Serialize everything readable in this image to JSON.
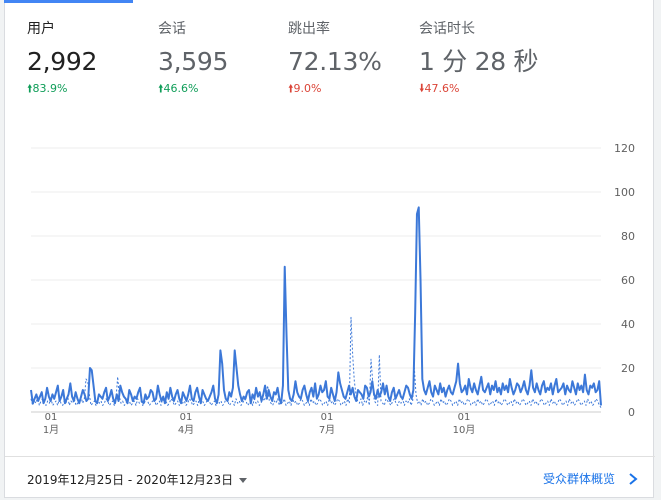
{
  "metrics": [
    {
      "label": "用户",
      "value": "2,992",
      "change": "83.9%",
      "direction": "up"
    },
    {
      "label": "会话",
      "value": "3,595",
      "change": "46.6%",
      "direction": "up"
    },
    {
      "label": "跳出率",
      "value": "72.13%",
      "change": "9.0%",
      "direction": "up"
    },
    {
      "label": "会话时长",
      "value": "1 分 28 秒",
      "change": "47.6%",
      "direction": "down"
    }
  ],
  "colors": {
    "line": "#3c78d8",
    "up": "#0f9d58",
    "down": "#db4437",
    "link": "#1a73e8"
  },
  "footer": {
    "date_range": "2019年12月25日 - 2020年12月23日",
    "link_label": "受众群体概览"
  },
  "chart_data": {
    "type": "line",
    "ylim": [
      0,
      120
    ],
    "yticks": [
      0,
      20,
      40,
      60,
      80,
      100,
      120
    ],
    "xtick_labels": [
      {
        "day": "01",
        "month": "1月"
      },
      {
        "day": "01",
        "month": "4月"
      },
      {
        "day": "01",
        "month": "7月"
      },
      {
        "day": "01",
        "month": "10月"
      }
    ],
    "series": [
      {
        "style": "solid",
        "values": [
          10,
          4,
          6,
          8,
          5,
          7,
          9,
          4,
          6,
          11,
          7,
          5,
          8,
          6,
          9,
          12,
          5,
          7,
          10,
          4,
          6,
          8,
          13,
          7,
          5,
          9,
          6,
          4,
          7,
          10,
          8,
          5,
          6,
          20,
          19,
          12,
          5,
          4,
          8,
          7,
          6,
          9,
          11,
          5,
          7,
          10,
          6,
          4,
          8,
          5,
          12,
          9,
          7,
          6,
          4,
          10,
          8,
          5,
          7,
          6,
          9,
          11,
          5,
          4,
          8,
          6,
          7,
          10,
          9,
          5,
          6,
          12,
          8,
          5,
          7,
          4,
          9,
          6,
          11,
          7,
          5,
          8,
          10,
          6,
          4,
          9,
          7,
          5,
          8,
          12,
          6,
          5,
          9,
          11,
          7,
          4,
          10,
          8,
          6,
          5,
          7,
          9,
          12,
          6,
          4,
          8,
          28,
          22,
          10,
          6,
          5,
          9,
          7,
          11,
          28,
          20,
          12,
          8,
          5,
          7,
          6,
          9,
          10,
          4,
          8,
          6,
          11,
          7,
          9,
          5,
          8,
          12,
          6,
          10,
          7,
          5,
          9,
          8,
          11,
          6,
          4,
          12,
          66,
          35,
          10,
          6,
          5,
          8,
          14,
          9,
          7,
          6,
          10,
          12,
          8,
          5,
          9,
          11,
          7,
          13,
          6,
          8,
          12,
          9,
          10,
          14,
          7,
          6,
          11,
          8,
          5,
          9,
          18,
          13,
          10,
          7,
          6,
          9,
          12,
          8,
          11,
          7,
          5,
          10,
          9,
          8,
          6,
          12,
          11,
          7,
          9,
          14,
          8,
          6,
          10,
          7,
          9,
          13,
          8,
          12,
          7,
          5,
          9,
          11,
          6,
          8,
          10,
          7,
          6,
          9,
          12,
          11,
          8,
          6,
          10,
          45,
          90,
          93,
          60,
          15,
          10,
          8,
          11,
          14,
          9,
          7,
          12,
          10,
          8,
          13,
          9,
          11,
          7,
          10,
          12,
          9,
          8,
          11,
          14,
          22,
          13,
          9,
          10,
          12,
          8,
          15,
          11,
          9,
          13,
          10,
          8,
          12,
          16,
          10,
          9,
          11,
          13,
          8,
          12,
          10,
          14,
          9,
          11,
          8,
          13,
          10,
          12,
          9,
          15,
          11,
          8,
          10,
          13,
          12,
          9,
          11,
          14,
          10,
          8,
          12,
          19,
          11,
          9,
          13,
          10,
          8,
          12,
          14,
          9,
          11,
          10,
          13,
          8,
          12,
          15,
          9,
          10,
          11,
          13,
          8,
          12,
          10,
          9,
          14,
          11,
          8,
          13,
          10,
          12,
          9,
          17,
          10,
          8,
          12,
          11,
          13,
          9,
          10,
          14,
          3
        ]
      },
      {
        "style": "dashed",
        "values": [
          6,
          3,
          5,
          4,
          7,
          3,
          5,
          6,
          4,
          3,
          5,
          4,
          6,
          3,
          4,
          5,
          3,
          6,
          4,
          3,
          5,
          4,
          7,
          3,
          5,
          4,
          6,
          3,
          4,
          5,
          7,
          4,
          6,
          15,
          14,
          8,
          3,
          4,
          5,
          3,
          6,
          4,
          5,
          3,
          4,
          6,
          5,
          3,
          4,
          5,
          3,
          6,
          16,
          7,
          4,
          5,
          3,
          4,
          6,
          5,
          3,
          4,
          5,
          3,
          6,
          4,
          5,
          3,
          4,
          6,
          5,
          3,
          4,
          5,
          6,
          3,
          4,
          5,
          3,
          6,
          4,
          5,
          3,
          4,
          6,
          5,
          3,
          4,
          5,
          3,
          6,
          4,
          5,
          3,
          4,
          6,
          5,
          3,
          4,
          5,
          3,
          6,
          4,
          5,
          3,
          4,
          6,
          5,
          3,
          4,
          5,
          3,
          6,
          4,
          5,
          3,
          4,
          6,
          5,
          3,
          4,
          5,
          3,
          6,
          4,
          5,
          3,
          4,
          6,
          5,
          3,
          4,
          5,
          3,
          6,
          4,
          5,
          3,
          4,
          6,
          5,
          8,
          12,
          5,
          4,
          3,
          5,
          4,
          6,
          3,
          5,
          4,
          6,
          3,
          4,
          5,
          3,
          6,
          4,
          5,
          3,
          4,
          6,
          5,
          3,
          4,
          5,
          3,
          6,
          4,
          5,
          3,
          4,
          6,
          5,
          3,
          4,
          5,
          3,
          6,
          4,
          5,
          3,
          4,
          6,
          5,
          3,
          4,
          5,
          3,
          6,
          4,
          43,
          26,
          14,
          8,
          5,
          4,
          6,
          3,
          5,
          4,
          7,
          3,
          24,
          14,
          5,
          4,
          3,
          26,
          5,
          4,
          3,
          6,
          5,
          4,
          3,
          5,
          6,
          4,
          3,
          5,
          4,
          6,
          3,
          5,
          4,
          6,
          3,
          5,
          20,
          8,
          4,
          5,
          3,
          6,
          4,
          5,
          3,
          4,
          6,
          5,
          3,
          4,
          5,
          3,
          6,
          4,
          5,
          3,
          4,
          6,
          5,
          3,
          4,
          5,
          3,
          6,
          4,
          5,
          3,
          4,
          6,
          5,
          3,
          4,
          5,
          3,
          6,
          4,
          5,
          3,
          4,
          6,
          5,
          3,
          4,
          5,
          3,
          6,
          4,
          5,
          3,
          4,
          6,
          5,
          3,
          4,
          5,
          3,
          6,
          4,
          5,
          3,
          4,
          6,
          5,
          3,
          4,
          5,
          3,
          6,
          4,
          5,
          3,
          4,
          6,
          5,
          3,
          4,
          5,
          3,
          6,
          4,
          5,
          3,
          4,
          6,
          5,
          3,
          4,
          5,
          3,
          6,
          4,
          5,
          3,
          4,
          6,
          5,
          3,
          4,
          5,
          3,
          6,
          4,
          5,
          3,
          4,
          6,
          5,
          3,
          2
        ]
      }
    ]
  }
}
